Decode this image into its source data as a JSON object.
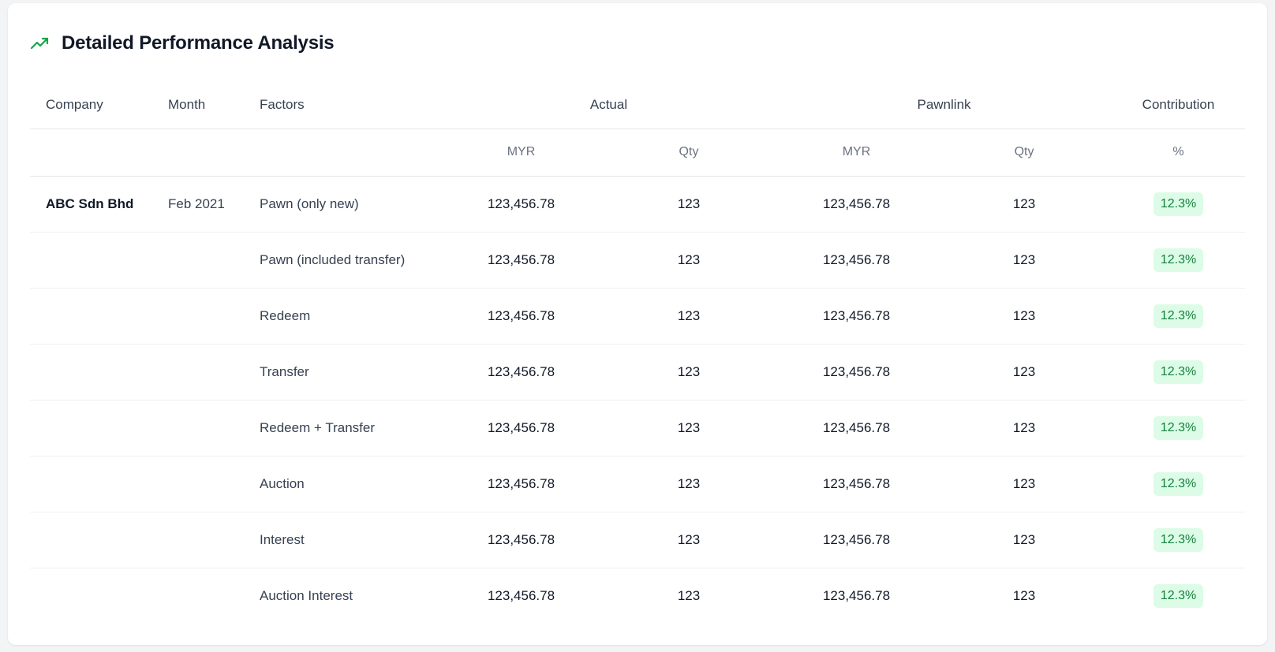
{
  "header": {
    "title": "Detailed Performance Analysis",
    "icon": "trending-up-icon",
    "accent_color": "#16a34a"
  },
  "table": {
    "columns": {
      "company": "Company",
      "month": "Month",
      "factors": "Factors",
      "actual": "Actual",
      "pawnlink": "Pawnlink",
      "contribution": "Contribution"
    },
    "subcolumns": {
      "actual_myr": "MYR",
      "actual_qty": "Qty",
      "pawnlink_myr": "MYR",
      "pawnlink_qty": "Qty",
      "contribution_pct": "%"
    },
    "rows": [
      {
        "company": "ABC Sdn Bhd",
        "month": "Feb 2021",
        "factor": "Pawn (only new)",
        "actual_myr": "123,456.78",
        "actual_qty": "123",
        "pawnlink_myr": "123,456.78",
        "pawnlink_qty": "123",
        "contribution": "12.3%"
      },
      {
        "company": "",
        "month": "",
        "factor": "Pawn (included transfer)",
        "actual_myr": "123,456.78",
        "actual_qty": "123",
        "pawnlink_myr": "123,456.78",
        "pawnlink_qty": "123",
        "contribution": "12.3%"
      },
      {
        "company": "",
        "month": "",
        "factor": "Redeem",
        "actual_myr": "123,456.78",
        "actual_qty": "123",
        "pawnlink_myr": "123,456.78",
        "pawnlink_qty": "123",
        "contribution": "12.3%"
      },
      {
        "company": "",
        "month": "",
        "factor": "Transfer",
        "actual_myr": "123,456.78",
        "actual_qty": "123",
        "pawnlink_myr": "123,456.78",
        "pawnlink_qty": "123",
        "contribution": "12.3%"
      },
      {
        "company": "",
        "month": "",
        "factor": "Redeem + Transfer",
        "actual_myr": "123,456.78",
        "actual_qty": "123",
        "pawnlink_myr": "123,456.78",
        "pawnlink_qty": "123",
        "contribution": "12.3%"
      },
      {
        "company": "",
        "month": "",
        "factor": "Auction",
        "actual_myr": "123,456.78",
        "actual_qty": "123",
        "pawnlink_myr": "123,456.78",
        "pawnlink_qty": "123",
        "contribution": "12.3%"
      },
      {
        "company": "",
        "month": "",
        "factor": "Interest",
        "actual_myr": "123,456.78",
        "actual_qty": "123",
        "pawnlink_myr": "123,456.78",
        "pawnlink_qty": "123",
        "contribution": "12.3%"
      },
      {
        "company": "",
        "month": "",
        "factor": "Auction Interest",
        "actual_myr": "123,456.78",
        "actual_qty": "123",
        "pawnlink_myr": "123,456.78",
        "pawnlink_qty": "123",
        "contribution": "12.3%"
      }
    ]
  }
}
